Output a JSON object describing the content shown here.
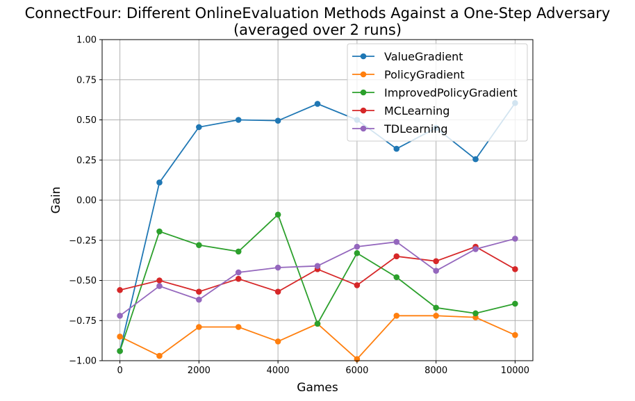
{
  "chart_data": {
    "type": "line",
    "title": "ConnectFour: Different OnlineEvaluation Methods Against a One-Step Adversary",
    "subtitle": "(averaged over 2 runs)",
    "xlabel": "Games",
    "ylabel": "Gain",
    "xlim": [
      -450,
      10450
    ],
    "ylim": [
      -1.0,
      1.0
    ],
    "x_ticks": [
      0,
      2000,
      4000,
      6000,
      8000,
      10000
    ],
    "y_ticks": [
      -1.0,
      -0.75,
      -0.5,
      -0.25,
      0.0,
      0.25,
      0.5,
      0.75,
      1.0
    ],
    "x_tick_labels": [
      "0",
      "2000",
      "4000",
      "6000",
      "8000",
      "10000"
    ],
    "y_tick_labels": [
      "−1.00",
      "−0.75",
      "−0.50",
      "−0.25",
      "0.00",
      "0.25",
      "0.50",
      "0.75",
      "1.00"
    ],
    "grid": true,
    "legend_position": "top-right",
    "x": [
      0,
      1000,
      2000,
      3000,
      4000,
      5000,
      6000,
      7000,
      8000,
      9000,
      10000
    ],
    "series": [
      {
        "name": "ValueGradient",
        "color": "#1f77b4",
        "values": [
          -0.94,
          0.11,
          0.455,
          0.5,
          0.495,
          0.6,
          0.5,
          0.32,
          0.45,
          0.255,
          0.605
        ]
      },
      {
        "name": "PolicyGradient",
        "color": "#ff7f0e",
        "values": [
          -0.85,
          -0.97,
          -0.79,
          -0.79,
          -0.88,
          -0.77,
          -0.99,
          -0.72,
          -0.72,
          -0.73,
          -0.84
        ]
      },
      {
        "name": "ImprovedPolicyGradient",
        "color": "#2ca02c",
        "values": [
          -0.94,
          -0.195,
          -0.28,
          -0.32,
          -0.09,
          -0.77,
          -0.33,
          -0.48,
          -0.67,
          -0.705,
          -0.645
        ]
      },
      {
        "name": "MCLearning",
        "color": "#d62728",
        "values": [
          -0.56,
          -0.5,
          -0.57,
          -0.49,
          -0.57,
          -0.43,
          -0.53,
          -0.35,
          -0.38,
          -0.29,
          -0.43
        ]
      },
      {
        "name": "TDLearning",
        "color": "#9467bd",
        "values": [
          -0.72,
          -0.535,
          -0.62,
          -0.45,
          -0.42,
          -0.41,
          -0.29,
          -0.26,
          -0.44,
          -0.305,
          -0.24
        ]
      }
    ]
  }
}
